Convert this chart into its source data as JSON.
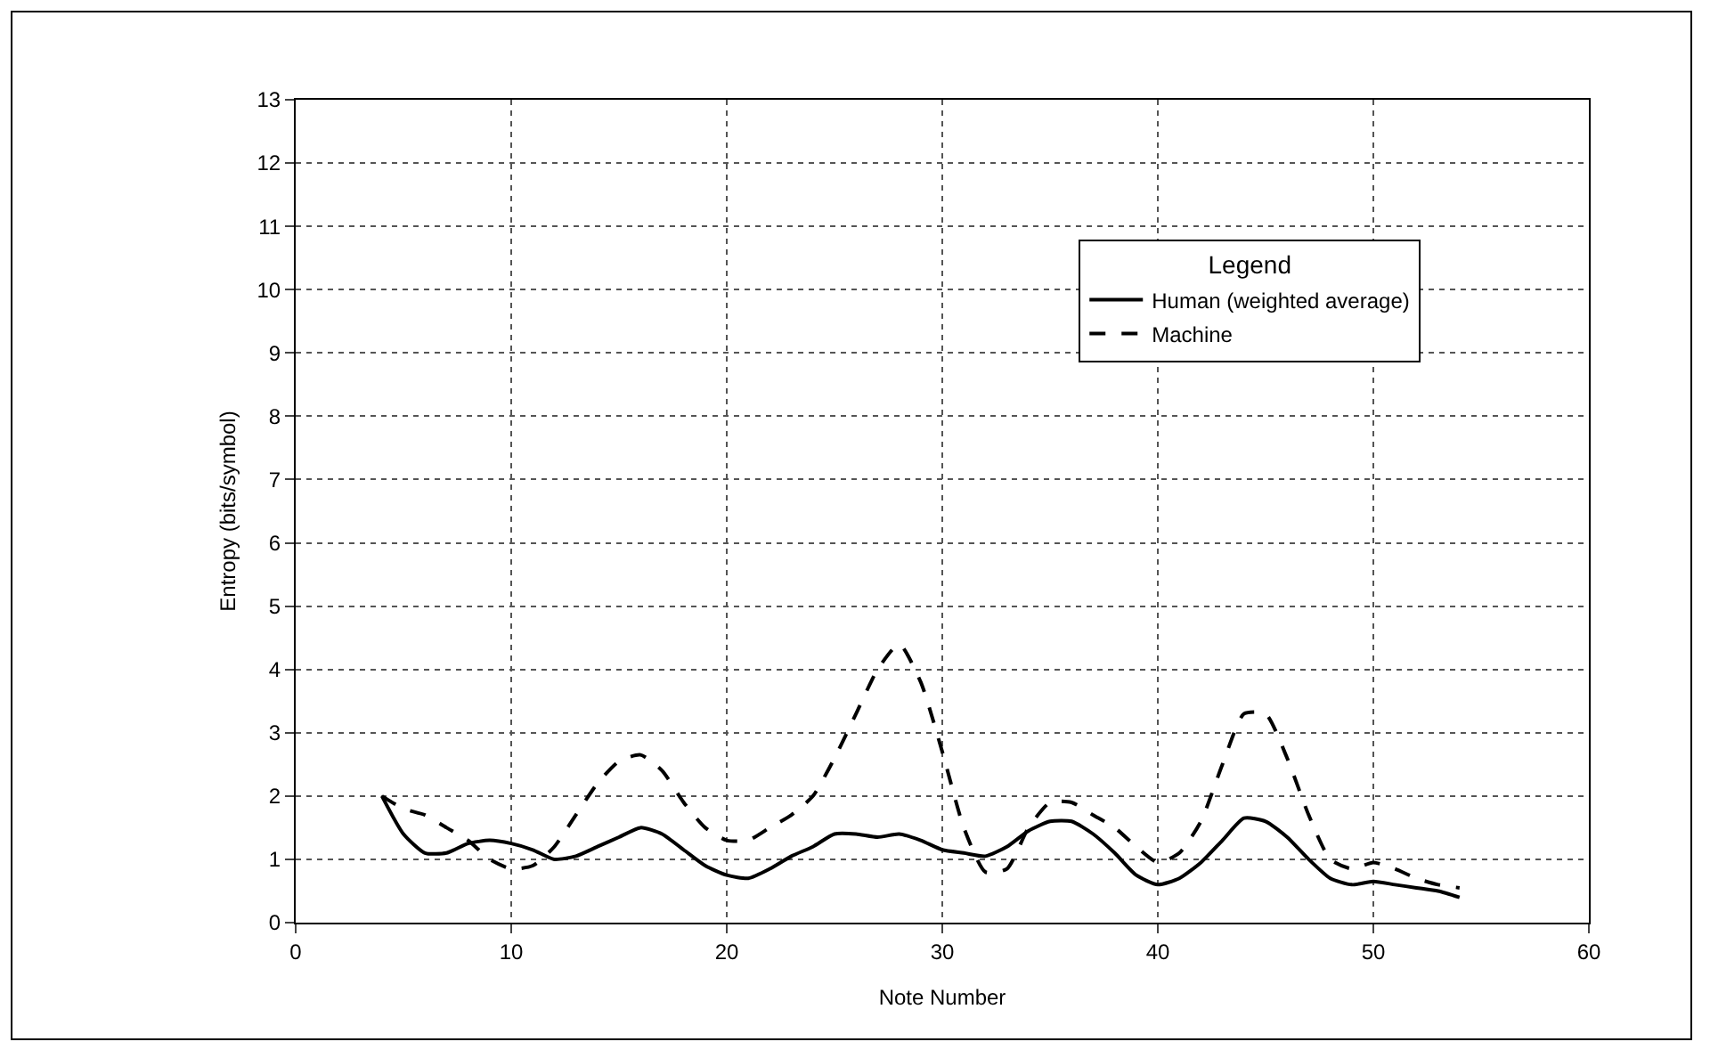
{
  "chart_data": {
    "type": "line",
    "xlabel": "Note Number",
    "ylabel": "Entropy (bits/symbol)",
    "legend_title": "Legend",
    "legend": "top right",
    "grid": true,
    "marker": "none",
    "x": [
      4,
      5,
      6,
      7,
      8,
      9,
      10,
      11,
      12,
      13,
      14,
      15,
      16,
      17,
      18,
      19,
      20,
      21,
      22,
      23,
      24,
      25,
      26,
      27,
      28,
      29,
      30,
      31,
      32,
      33,
      34,
      35,
      36,
      37,
      38,
      39,
      40,
      41,
      42,
      43,
      44,
      45,
      46,
      47,
      48,
      49,
      50,
      51,
      52,
      53,
      54
    ],
    "xlim": [
      0,
      60
    ],
    "xticks": [
      0,
      10,
      20,
      30,
      40,
      50,
      60
    ],
    "ylim": [
      0,
      13
    ],
    "yticks": [
      0,
      1,
      2,
      3,
      4,
      5,
      6,
      7,
      8,
      9,
      10,
      11,
      12,
      13
    ],
    "series": [
      {
        "name": "Human (weighted average)",
        "color": "#000000",
        "line_style": "solid",
        "values": [
          2.0,
          1.4,
          1.1,
          1.1,
          1.25,
          1.3,
          1.25,
          1.15,
          1.0,
          1.05,
          1.2,
          1.35,
          1.5,
          1.4,
          1.15,
          0.9,
          0.75,
          0.7,
          0.85,
          1.05,
          1.2,
          1.4,
          1.4,
          1.35,
          1.4,
          1.3,
          1.15,
          1.1,
          1.05,
          1.2,
          1.45,
          1.6,
          1.6,
          1.4,
          1.1,
          0.75,
          0.6,
          0.7,
          0.95,
          1.3,
          1.65,
          1.6,
          1.35,
          1.0,
          0.7,
          0.6,
          0.65,
          0.6,
          0.55,
          0.5,
          0.4
        ]
      },
      {
        "name": "Machine",
        "color": "#000000",
        "line_style": "dashed",
        "values": [
          2.0,
          1.8,
          1.7,
          1.5,
          1.3,
          1.0,
          0.85,
          0.9,
          1.2,
          1.7,
          2.2,
          2.55,
          2.65,
          2.4,
          1.9,
          1.5,
          1.3,
          1.3,
          1.5,
          1.7,
          2.0,
          2.6,
          3.3,
          4.0,
          4.4,
          3.8,
          2.7,
          1.5,
          0.8,
          0.85,
          1.5,
          1.9,
          1.9,
          1.7,
          1.5,
          1.2,
          0.95,
          1.1,
          1.6,
          2.5,
          3.3,
          3.3,
          2.6,
          1.7,
          1.0,
          0.85,
          0.95,
          0.85,
          0.7,
          0.6,
          0.55
        ]
      }
    ]
  }
}
